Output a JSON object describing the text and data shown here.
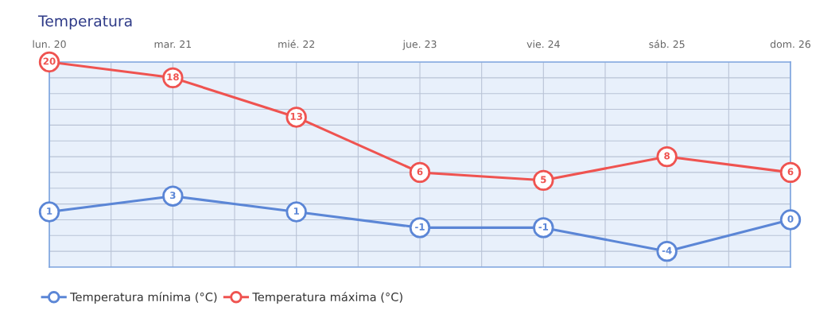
{
  "chart_data": {
    "type": "line",
    "title": "Temperatura",
    "categories": [
      "lun. 20",
      "mar. 21",
      "mié. 22",
      "jue. 23",
      "vie. 24",
      "sáb. 25",
      "dom. 26"
    ],
    "series": [
      {
        "name": "Temperatura mínima (°C)",
        "color": "#5b86d6",
        "values": [
          1,
          3,
          1,
          -1,
          -1,
          -4,
          0
        ]
      },
      {
        "name": "Temperatura máxima (°C)",
        "color": "#ef5350",
        "values": [
          20,
          18,
          13,
          6,
          5,
          8,
          6
        ]
      }
    ],
    "ylim": [
      -6,
      20
    ],
    "yticks": [
      {
        "value": -6,
        "label": null
      },
      {
        "value": -4,
        "label": null
      },
      {
        "value": -2,
        "label": null
      },
      {
        "value": 0,
        "label": null
      },
      {
        "value": 2,
        "label": null
      },
      {
        "value": 4,
        "label": null
      },
      {
        "value": 6,
        "label": null
      },
      {
        "value": 8,
        "label": null
      },
      {
        "value": 10,
        "label": null
      },
      {
        "value": 12,
        "label": null
      },
      {
        "value": 14,
        "label": null
      },
      {
        "value": 16,
        "label": null
      },
      {
        "value": 18,
        "label": null
      },
      {
        "value": 20,
        "label": null
      }
    ],
    "tick_labels": "x",
    "grid": true,
    "marker": "circle",
    "line_style": "solid",
    "data_labels": true,
    "legend": "bottom left"
  }
}
